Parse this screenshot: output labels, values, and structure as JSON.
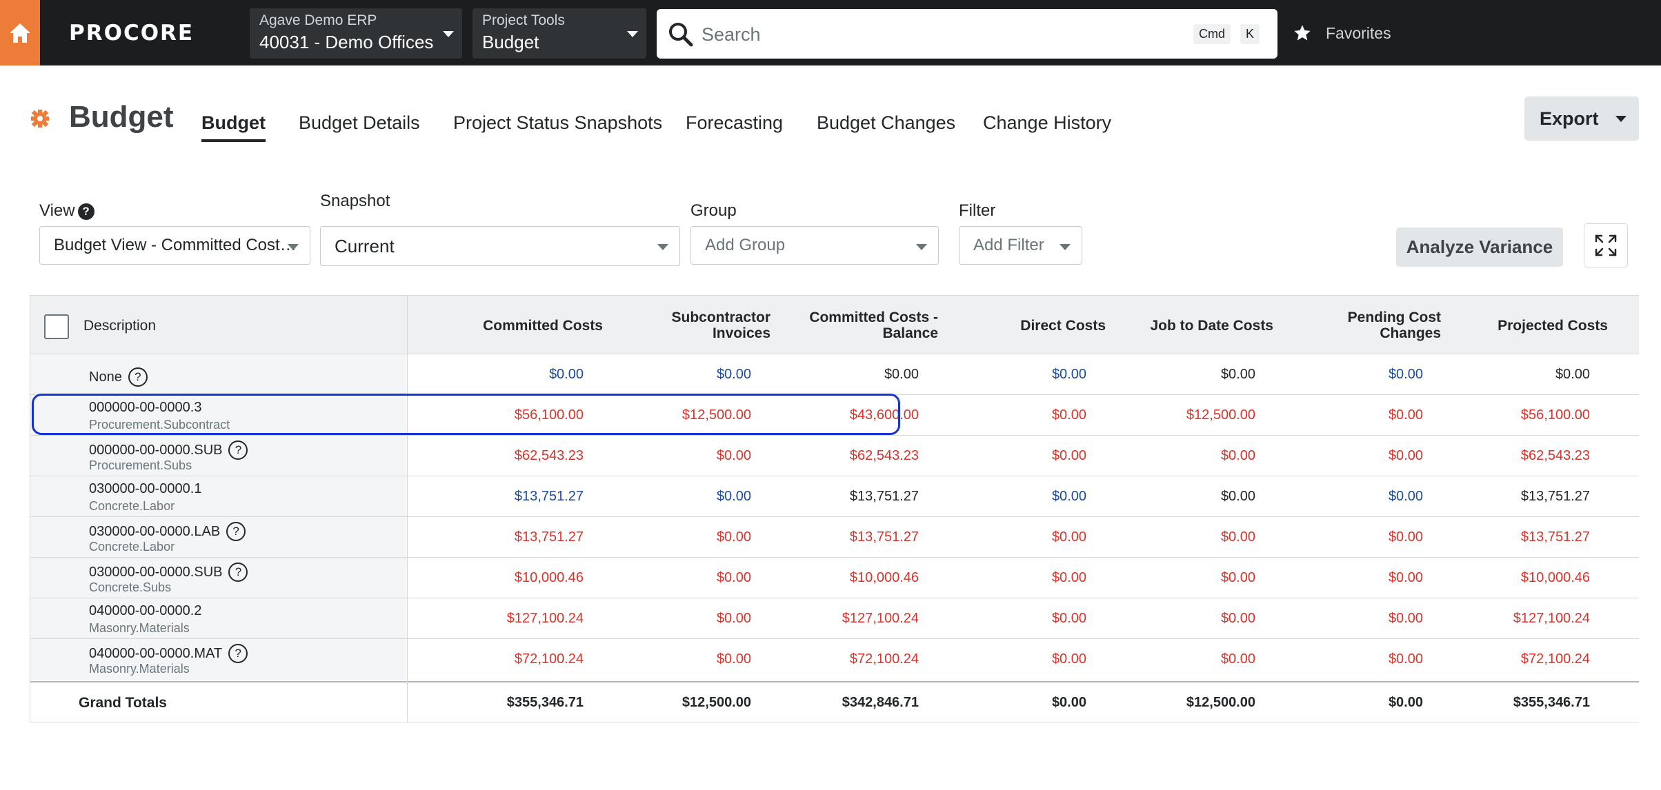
{
  "topnav": {
    "logo": "PROCORE",
    "company_label": "Agave Demo ERP",
    "project_name": "40031 - Demo Offices",
    "tool_label": "Project Tools",
    "tool_name": "Budget",
    "search_placeholder": "Search",
    "kbd_cmd": "Cmd",
    "kbd_k": "K",
    "favorites": "Favorites",
    "accent_color": "#ee7c39"
  },
  "header": {
    "title": "Budget",
    "tabs": [
      "Budget",
      "Budget Details",
      "Project Status Snapshots",
      "Forecasting",
      "Budget Changes",
      "Change History"
    ],
    "active_tab": "Budget",
    "export_label": "Export"
  },
  "filters": {
    "view_label": "View",
    "view_value": "Budget View - Committed Cost…",
    "snapshot_label": "Snapshot",
    "snapshot_value": "Current",
    "group_label": "Group",
    "group_placeholder": "Add Group",
    "filter_label": "Filter",
    "filter_placeholder": "Add Filter",
    "analyze_label": "Analyze Variance"
  },
  "table": {
    "columns": {
      "description": "Description",
      "committed_1": "Committed Costs",
      "sub_inv_1": "Subcontractor",
      "sub_inv_2": "Invoices",
      "ccb_1": "Committed Costs -",
      "ccb_2": "Balance",
      "direct": "Direct Costs",
      "jtd": "Job to Date Costs",
      "pcc_1": "Pending Cost",
      "pcc_2": "Changes",
      "projected": "Projected Costs"
    },
    "rows": [
      {
        "code": "None",
        "sub": "",
        "values": [
          "$0.00",
          "$0.00",
          "$0.00",
          "$0.00",
          "$0.00",
          "$0.00",
          "$0.00"
        ]
      },
      {
        "code": "000000-00-0000.3",
        "sub": "Procurement.Subcontract",
        "values": [
          "$56,100.00",
          "$12,500.00",
          "$43,600.00",
          "$0.00",
          "$12,500.00",
          "$0.00",
          "$56,100.00"
        ]
      },
      {
        "code": "000000-00-0000.SUB",
        "sub": "Procurement.Subs",
        "values": [
          "$62,543.23",
          "$0.00",
          "$62,543.23",
          "$0.00",
          "$0.00",
          "$0.00",
          "$62,543.23"
        ]
      },
      {
        "code": "030000-00-0000.1",
        "sub": "Concrete.Labor",
        "values": [
          "$13,751.27",
          "$0.00",
          "$13,751.27",
          "$0.00",
          "$0.00",
          "$0.00",
          "$13,751.27"
        ]
      },
      {
        "code": "030000-00-0000.LAB",
        "sub": "Concrete.Labor",
        "values": [
          "$13,751.27",
          "$0.00",
          "$13,751.27",
          "$0.00",
          "$0.00",
          "$0.00",
          "$13,751.27"
        ]
      },
      {
        "code": "030000-00-0000.SUB",
        "sub": "Concrete.Subs",
        "values": [
          "$10,000.46",
          "$0.00",
          "$10,000.46",
          "$0.00",
          "$0.00",
          "$0.00",
          "$10,000.46"
        ]
      },
      {
        "code": "040000-00-0000.2",
        "sub": "Masonry.Materials",
        "values": [
          "$127,100.24",
          "$0.00",
          "$127,100.24",
          "$0.00",
          "$0.00",
          "$0.00",
          "$127,100.24"
        ]
      },
      {
        "code": "040000-00-0000.MAT",
        "sub": "Masonry.Materials",
        "values": [
          "$72,100.24",
          "$0.00",
          "$72,100.24",
          "$0.00",
          "$0.00",
          "$0.00",
          "$72,100.24"
        ]
      }
    ],
    "totals": {
      "label": "Grand Totals",
      "values": [
        "$355,346.71",
        "$12,500.00",
        "$342,846.71",
        "$0.00",
        "$12,500.00",
        "$0.00",
        "$355,346.71"
      ]
    }
  }
}
